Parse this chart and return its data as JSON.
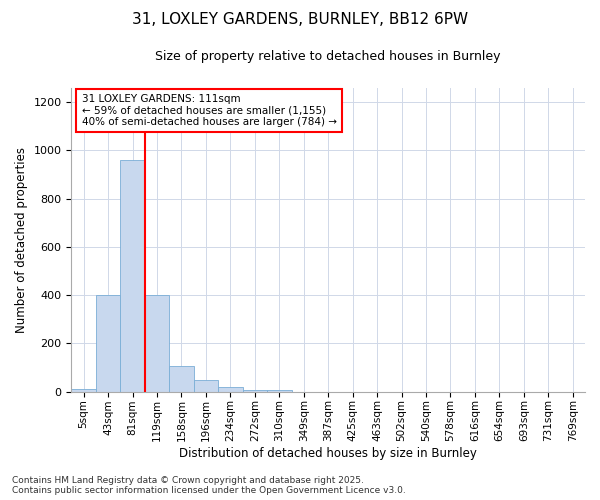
{
  "title_line1": "31, LOXLEY GARDENS, BURNLEY, BB12 6PW",
  "title_line2": "Size of property relative to detached houses in Burnley",
  "xlabel": "Distribution of detached houses by size in Burnley",
  "ylabel": "Number of detached properties",
  "bin_labels": [
    "5sqm",
    "43sqm",
    "81sqm",
    "119sqm",
    "158sqm",
    "196sqm",
    "234sqm",
    "272sqm",
    "310sqm",
    "349sqm",
    "387sqm",
    "425sqm",
    "463sqm",
    "502sqm",
    "540sqm",
    "578sqm",
    "616sqm",
    "654sqm",
    "693sqm",
    "731sqm",
    "769sqm"
  ],
  "bar_values": [
    10,
    400,
    960,
    400,
    105,
    50,
    20,
    5,
    5,
    0,
    0,
    0,
    0,
    0,
    0,
    0,
    0,
    0,
    0,
    0,
    0
  ],
  "bar_color": "#c8d8ee",
  "bar_edgecolor": "#7aaed6",
  "vline_bin_index": 2,
  "vline_color": "red",
  "ylim": [
    0,
    1260
  ],
  "yticks": [
    0,
    200,
    400,
    600,
    800,
    1000,
    1200
  ],
  "annotation_text_line1": "31 LOXLEY GARDENS: 111sqm",
  "annotation_text_line2": "← 59% of detached houses are smaller (1,155)",
  "annotation_text_line3": "40% of semi-detached houses are larger (784) →",
  "footer_line1": "Contains HM Land Registry data © Crown copyright and database right 2025.",
  "footer_line2": "Contains public sector information licensed under the Open Government Licence v3.0.",
  "background_color": "#ffffff",
  "plot_background": "#ffffff",
  "grid_color": "#d0d8e8"
}
